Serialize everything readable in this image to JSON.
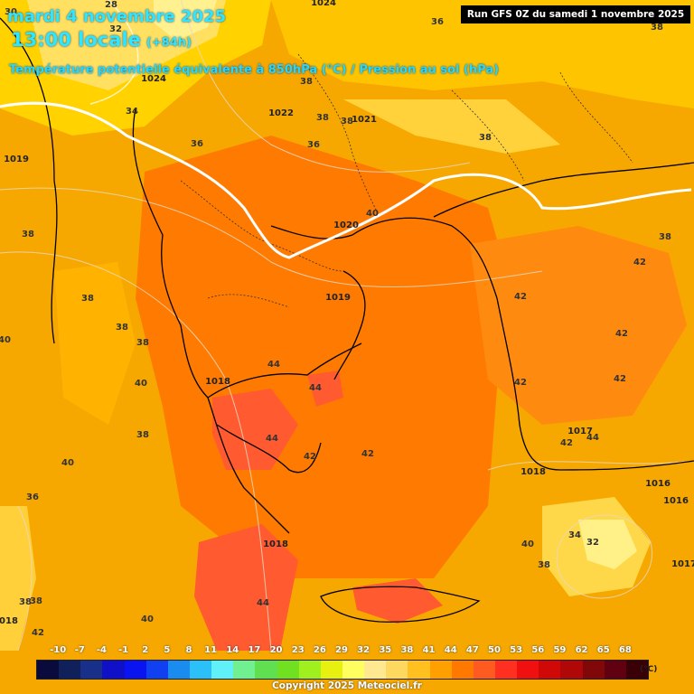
{
  "header": {
    "date": "mardi 4 novembre 2025",
    "time": "13:00 locale",
    "lead": "(+84h)",
    "parameter": "Température potentielle équivalente à 850hPa (°C) / Pression au sol (hPa)"
  },
  "run": "Run GFS 0Z du samedi 1 novembre 2025",
  "colorbar": {
    "ticks": [
      "-10",
      "-7",
      "-4",
      "-1",
      "2",
      "5",
      "8",
      "11",
      "14",
      "17",
      "20",
      "23",
      "26",
      "29",
      "32",
      "35",
      "38",
      "41",
      "44",
      "47",
      "50",
      "53",
      "56",
      "59",
      "62",
      "65",
      "68"
    ],
    "unit": "(°C)",
    "colors": [
      "#0a0a3c",
      "#10205a",
      "#18308a",
      "#1010c8",
      "#0a14f0",
      "#1040f0",
      "#1a8cf0",
      "#2cc0f8",
      "#60f0f8",
      "#70f090",
      "#60e050",
      "#70e020",
      "#a0f020",
      "#e8f010",
      "#ffff60",
      "#ffe890",
      "#ffd860",
      "#ffc020",
      "#ffa000",
      "#ff7800",
      "#ff5a20",
      "#ff3020",
      "#f01010",
      "#d00808",
      "#b00808",
      "#800808",
      "#600010",
      "#3a0008"
    ]
  },
  "copyright": "Copyright 2025 Meteociel.fr",
  "pressure_labels": [
    "1024",
    "1024",
    "1022",
    "1021",
    "1020",
    "1019",
    "1019",
    "1018",
    "1018",
    "1018",
    "1017",
    "1016",
    "1016",
    "1018",
    "1017"
  ],
  "temperature_labels": [
    "36",
    "38",
    "34",
    "36",
    "38",
    "38",
    "36",
    "38",
    "40",
    "38",
    "38",
    "38",
    "42",
    "42",
    "42",
    "42",
    "42",
    "44",
    "44",
    "44",
    "42",
    "42",
    "42",
    "38",
    "40",
    "38",
    "40",
    "40",
    "38",
    "38",
    "44",
    "40",
    "38",
    "42",
    "44",
    "36",
    "34",
    "32",
    "38",
    "40",
    "38",
    "30",
    "32",
    "28"
  ]
}
